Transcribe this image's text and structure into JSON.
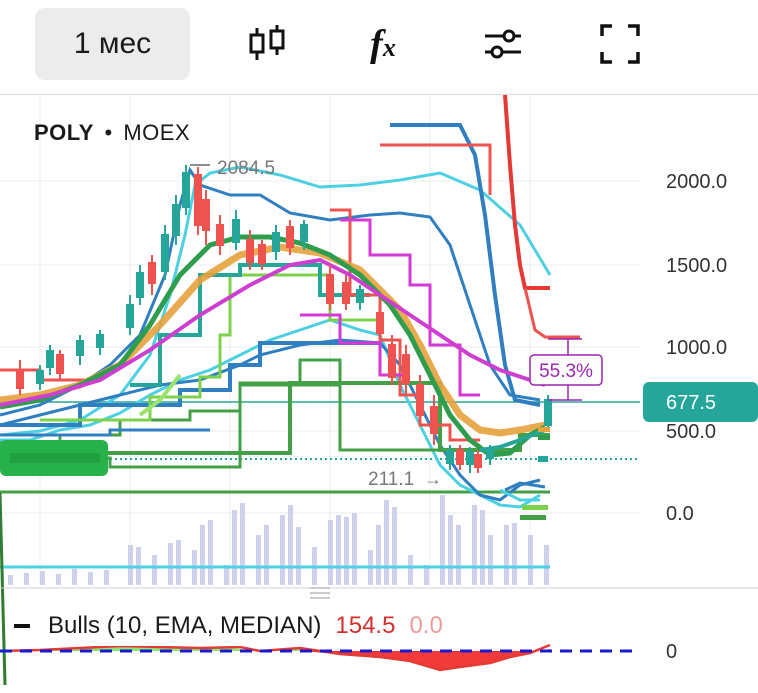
{
  "toolbar": {
    "period_label": "1 мес",
    "fx_label": "f",
    "fx_sub": "x"
  },
  "symbol": {
    "ticker": "POLY",
    "separator": "•",
    "exchange": "MOEX"
  },
  "price_axis": {
    "ticks": [
      "2000.0",
      "1500.0",
      "1000.0",
      "500.0",
      "0.0"
    ],
    "current_price": "677.5",
    "current_price_color": "#26a69a"
  },
  "annotations": {
    "high_label": "2084.5",
    "low_label": "211.1",
    "measure_label": "55.3%"
  },
  "indicator": {
    "legend_name": "Bulls (10, EMA, MEDIAN)",
    "value1": "154.5",
    "value2": "0.0",
    "axis_label": "0"
  },
  "colors": {
    "up": "#26a69a",
    "down": "#ef5350",
    "measure": "#9c27b0",
    "zero_line": "#1a1acc"
  },
  "chart_data": {
    "type": "line",
    "title": "POLY • MOEX",
    "ylim": [
      -550,
      2400
    ],
    "current_price": 677.5,
    "high": 2084.5,
    "low": 211.1,
    "measure_percent": 55.3
  }
}
